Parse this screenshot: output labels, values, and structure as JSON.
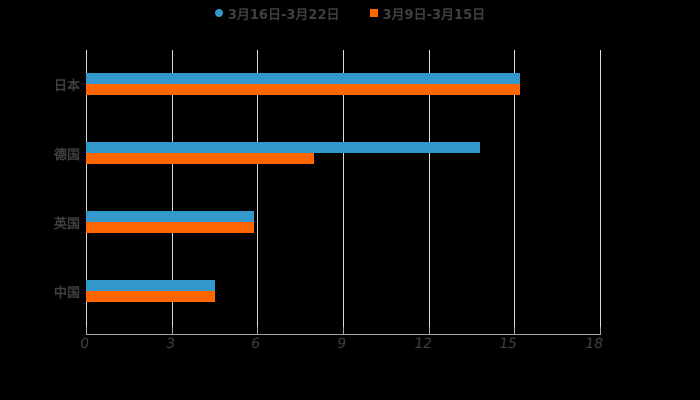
{
  "legend": {
    "series1": {
      "label": "3月16日-3月22日",
      "color": "#3399cc"
    },
    "series2": {
      "label": "3月9日-3月15日",
      "color": "#ff6600"
    }
  },
  "axis": {
    "ticks": [
      "0",
      "3",
      "6",
      "9",
      "12",
      "15",
      "18"
    ]
  },
  "categories": [
    "日本",
    "德国",
    "英国",
    "中国"
  ],
  "chart_data": {
    "type": "bar",
    "orientation": "horizontal",
    "title": "",
    "categories": [
      "日本",
      "德国",
      "英国",
      "中国"
    ],
    "series": [
      {
        "name": "3月16日-3月22日",
        "color": "#3399cc",
        "values": [
          15.2,
          13.8,
          5.9,
          4.5
        ]
      },
      {
        "name": "3月9日-3月15日",
        "color": "#ff6600",
        "values": [
          15.2,
          8.0,
          5.9,
          4.5
        ]
      }
    ],
    "xlabel": "",
    "ylabel": "",
    "xlim": [
      0,
      18
    ],
    "xticks": [
      0,
      3,
      6,
      9,
      12,
      15,
      18
    ],
    "grid": true,
    "legend_position": "top"
  }
}
